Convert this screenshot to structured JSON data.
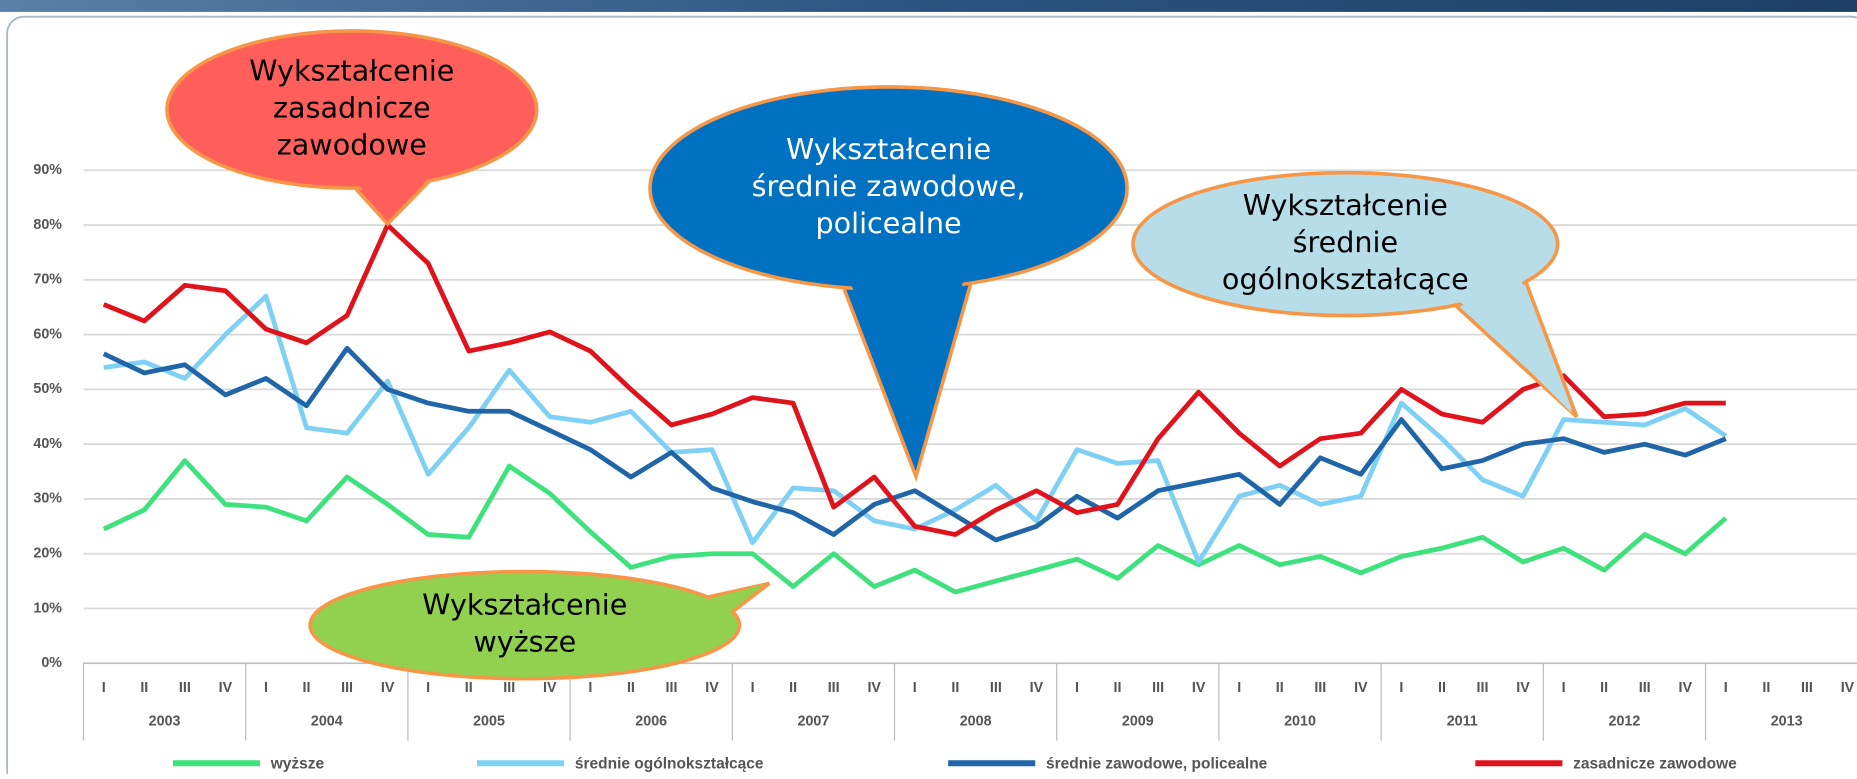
{
  "chart_data": {
    "type": "line",
    "categories": [
      "I",
      "II",
      "III",
      "IV",
      "I",
      "II",
      "III",
      "IV",
      "I",
      "II",
      "III",
      "IV",
      "I",
      "II",
      "III",
      "IV",
      "I",
      "II",
      "III",
      "IV",
      "I",
      "II",
      "III",
      "IV",
      "I",
      "II",
      "III",
      "IV",
      "I",
      "II",
      "III",
      "IV",
      "I",
      "II",
      "III",
      "IV",
      "I",
      "II",
      "III",
      "IV",
      "I",
      "II",
      "III",
      "IV"
    ],
    "years": [
      "2003",
      "2004",
      "2005",
      "2006",
      "2007",
      "2008",
      "2009",
      "2010",
      "2011",
      "2012",
      "2013"
    ],
    "ylim": [
      0,
      90
    ],
    "yticks": [
      {
        "value": 0,
        "label": "0%"
      },
      {
        "value": 10,
        "label": "10%"
      },
      {
        "value": 20,
        "label": "20%"
      },
      {
        "value": 30,
        "label": "30%"
      },
      {
        "value": 40,
        "label": "40%"
      },
      {
        "value": 50,
        "label": "50%"
      },
      {
        "value": 60,
        "label": "60%"
      },
      {
        "value": 70,
        "label": "70%"
      },
      {
        "value": 80,
        "label": "80%"
      },
      {
        "value": 90,
        "label": "90%"
      }
    ],
    "grid": true,
    "series": [
      {
        "name": "wyższe",
        "color": "#3ee27d",
        "values": [
          24.5,
          28,
          37,
          29,
          28.5,
          26,
          34,
          29,
          23.5,
          23,
          36,
          31,
          24,
          17.5,
          19.5,
          20,
          20,
          14,
          20,
          14,
          17,
          13,
          15,
          17,
          19,
          15.5,
          21.5,
          18,
          21.5,
          18,
          19.5,
          16.5,
          19.5,
          21,
          23,
          18.5,
          21,
          17,
          23.5,
          20,
          26.5,
          null,
          null,
          null
        ]
      },
      {
        "name": "średnie ogólnokształcące",
        "color": "#7fd0f5",
        "values": [
          54,
          55,
          52,
          60,
          67,
          43,
          42,
          51.5,
          34.5,
          43,
          53.5,
          45,
          44,
          46,
          38.5,
          39,
          22,
          32,
          31.5,
          26,
          24.5,
          28,
          32.5,
          26,
          39,
          36.5,
          37,
          18.5,
          30.5,
          32.5,
          29,
          30.5,
          47.5,
          41,
          33.5,
          30.5,
          44.5,
          44,
          43.5,
          46.5,
          41.5,
          null,
          null,
          null
        ]
      },
      {
        "name": "średnie zawodowe, policealne",
        "color": "#1f65a8",
        "values": [
          56.5,
          53,
          54.5,
          49,
          52,
          47,
          57.5,
          50,
          47.5,
          46,
          46,
          42.5,
          39,
          34,
          38.5,
          32,
          29.5,
          27.5,
          23.5,
          29,
          31.5,
          27,
          22.5,
          25,
          30.5,
          26.5,
          31.5,
          33,
          34.5,
          29,
          37.5,
          34.5,
          44.5,
          35.5,
          37,
          40,
          41,
          38.5,
          40,
          38,
          41,
          null,
          null,
          null
        ]
      },
      {
        "name": "zasadnicze zawodowe",
        "color": "#e0121b",
        "values": [
          65.5,
          62.5,
          69,
          68,
          61,
          58.5,
          63.5,
          80,
          73,
          57,
          58.5,
          60.5,
          57,
          50,
          43.5,
          45.5,
          48.5,
          47.5,
          28.5,
          34,
          25,
          23.5,
          28,
          31.5,
          27.5,
          29,
          41,
          49.5,
          42,
          36,
          41,
          42,
          50,
          45.5,
          44,
          50,
          52.5,
          45,
          45.5,
          47.5,
          47.5,
          null,
          null,
          null
        ]
      }
    ],
    "annotations": [
      {
        "lines": [
          "Wykształcenie",
          "zasadnicze",
          "zawodowe"
        ]
      },
      {
        "lines": [
          "Wykształcenie",
          "średnie zawodowe,",
          "policealne"
        ]
      },
      {
        "lines": [
          "Wykształcenie",
          "średnie",
          "ogólnokształcące"
        ]
      },
      {
        "lines": [
          "Wykształcenie",
          "wyższe"
        ]
      }
    ]
  }
}
